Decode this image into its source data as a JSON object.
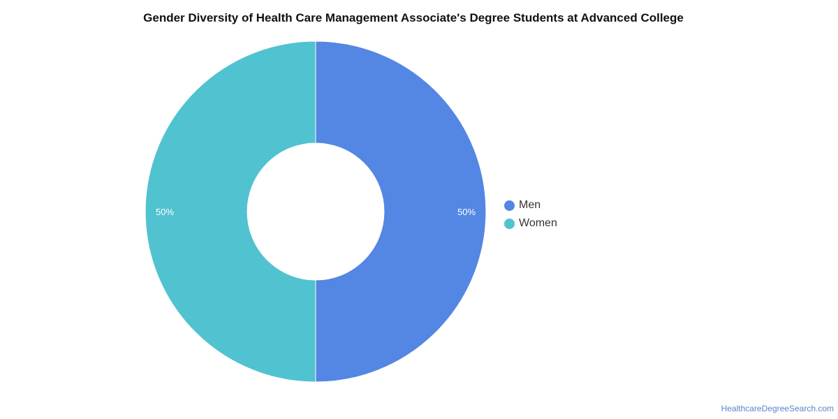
{
  "title": "Gender Diversity of Health Care Management Associate's Degree Students at Advanced College",
  "source": "HealthcareDegreeSearch.com",
  "chart_data": {
    "type": "pie",
    "variant": "donut",
    "title": "Gender Diversity of Health Care Management Associate's Degree Students at Advanced College",
    "legend_position": "right",
    "slices": [
      {
        "name": "Men",
        "value": 50,
        "label": "50%",
        "color": "#5486e3"
      },
      {
        "name": "Women",
        "value": 50,
        "label": "50%",
        "color": "#51c2cf"
      }
    ]
  }
}
